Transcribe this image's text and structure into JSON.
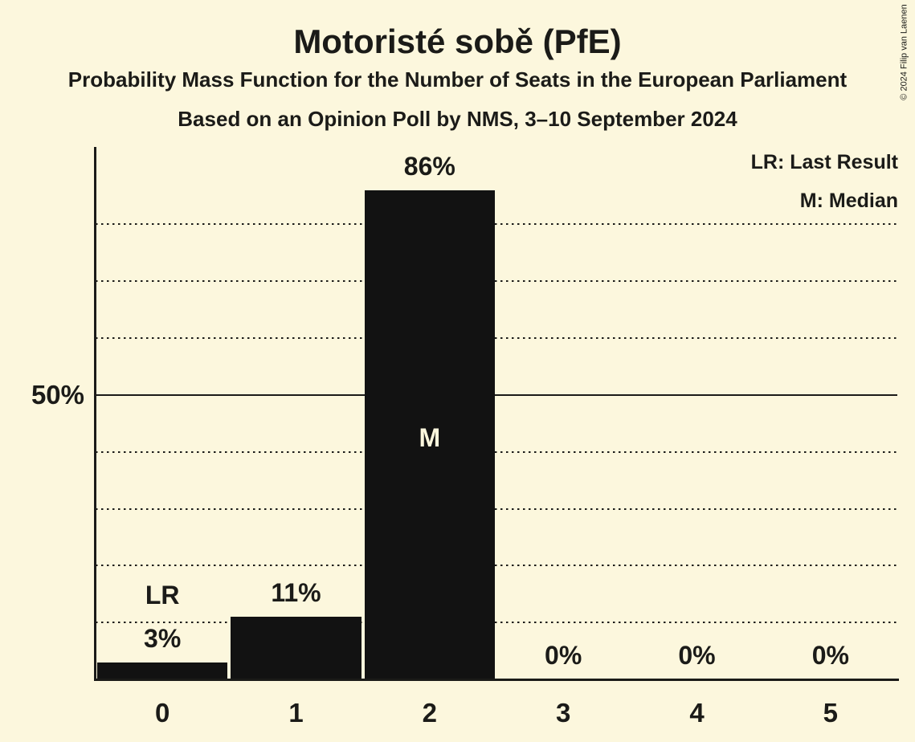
{
  "title": "Motoristé sobě (PfE)",
  "subtitle1": "Probability Mass Function for the Number of Seats in the European Parliament",
  "subtitle2": "Based on an Opinion Poll by NMS, 3–10 September 2024",
  "legend": {
    "lr": "LR: Last Result",
    "m": "M: Median"
  },
  "copyright": "© 2024 Filip van Laenen",
  "colors": {
    "background": "#FCF7DD",
    "bar": "#121212",
    "text": "#1B1B18",
    "label_inside_bar": "#FCF7DD"
  },
  "chart_data": {
    "type": "bar",
    "title": "Motoristé sobě (PfE)",
    "xlabel": "Number of Seats in the European Parliament",
    "ylabel": "Probability Mass",
    "categories": [
      "0",
      "1",
      "2",
      "3",
      "4",
      "5"
    ],
    "values": [
      3,
      11,
      86,
      0,
      0,
      0
    ],
    "value_labels": [
      "3%",
      "11%",
      "86%",
      "0%",
      "0%",
      "0%"
    ],
    "y_axis_label": "50%",
    "ylim": [
      0,
      93.6
    ],
    "y_solid_gridline_pct": [
      50
    ],
    "y_dotted_gridlines_pct": [
      10,
      20,
      30,
      40,
      60,
      70,
      80
    ],
    "grid": "dotted horizontal lines every 10%, solid line at 50%",
    "legend_position": "top-right",
    "annotations": [
      {
        "category": "0",
        "text": "LR",
        "position": "above",
        "meaning": "Last Result"
      },
      {
        "category": "2",
        "text": "M",
        "position": "inside",
        "meaning": "Median"
      }
    ]
  }
}
